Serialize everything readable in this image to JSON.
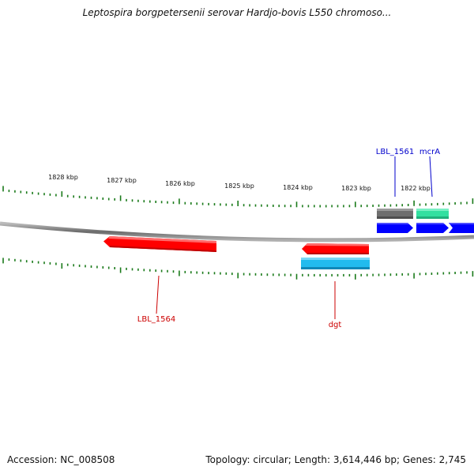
{
  "title": "Leptospira borgpetersenii serovar Hardjo-bovis L550 chromoso...",
  "footer": {
    "accession": "Accession: NC_008508",
    "summary": "Topology: circular; Length: 3,614,446 bp; Genes: 2,745"
  },
  "scale": {
    "tick_labels": [
      "1828 kbp",
      "1827 kbp",
      "1826 kbp",
      "1825 kbp",
      "1824 kbp",
      "1823 kbp",
      "1822 kbp"
    ]
  },
  "colors": {
    "backbone": "#8a8a8a",
    "tick": "#1a7a1a",
    "red_gene": "#ff0000",
    "cyan_gene": "#22bbee",
    "gray_gene": "#6e6e6e",
    "green_gene": "#33e0a0",
    "blue_gene": "#0000ff",
    "red_label": "#cc0000",
    "blue_label": "#0000cc"
  },
  "genes": {
    "lbl_1564": "LBL_1564",
    "dgt": "dgt",
    "lbl_1561": "LBL_1561",
    "mcra": "mcrA"
  }
}
